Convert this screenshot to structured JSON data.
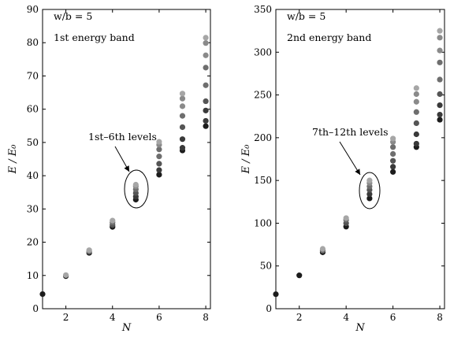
{
  "chart_data": [
    {
      "type": "scatter",
      "title": "",
      "xlabel": "N",
      "ylabel": "E / E₀",
      "xlim": [
        1,
        8.2
      ],
      "ylim": [
        0,
        90
      ],
      "xticks": [
        2,
        4,
        6,
        8
      ],
      "yticks": [
        0,
        10,
        20,
        30,
        40,
        50,
        60,
        70,
        80,
        90
      ],
      "annotations": [
        "w/b = 5",
        "1st energy band",
        "1st–6th levels"
      ],
      "points": [
        {
          "x": 1,
          "y": [
            4.4
          ]
        },
        {
          "x": 2,
          "y": [
            9.8,
            10.1
          ]
        },
        {
          "x": 3,
          "y": [
            16.8,
            17.2,
            17.6
          ]
        },
        {
          "x": 4,
          "y": [
            24.6,
            25.2,
            25.9,
            26.5
          ]
        },
        {
          "x": 5,
          "y": [
            32.8,
            33.7,
            34.8,
            35.9,
            36.8,
            37.3
          ]
        },
        {
          "x": 6,
          "y": [
            40.3,
            41.7,
            43.6,
            45.8,
            47.9,
            49.3,
            50.2
          ]
        },
        {
          "x": 7,
          "y": [
            47.6,
            48.4,
            51.0,
            54.6,
            58.0,
            60.9,
            63.2,
            64.7
          ]
        },
        {
          "x": 8,
          "y": [
            54.9,
            56.5,
            59.6,
            62.4,
            67.2,
            72.5,
            76.2,
            79.9,
            81.5
          ]
        }
      ],
      "circled": {
        "x": 5,
        "label": "1st–6th levels"
      }
    },
    {
      "type": "scatter",
      "title": "",
      "xlabel": "N",
      "ylabel": "E / E₀",
      "xlim": [
        1,
        8.2
      ],
      "ylim": [
        0,
        350
      ],
      "xticks": [
        2,
        4,
        6,
        8
      ],
      "yticks": [
        0,
        50,
        100,
        150,
        200,
        250,
        300,
        350
      ],
      "annotations": [
        "w/b = 5",
        "2nd energy band",
        "7th–12th levels"
      ],
      "points": [
        {
          "x": 1,
          "y": [
            17
          ]
        },
        {
          "x": 2,
          "y": [
            39
          ]
        },
        {
          "x": 3,
          "y": [
            66,
            68,
            70
          ]
        },
        {
          "x": 4,
          "y": [
            96,
            100,
            104,
            106
          ]
        },
        {
          "x": 5,
          "y": [
            129,
            134,
            139,
            143,
            147,
            150
          ]
        },
        {
          "x": 6,
          "y": [
            160,
            166,
            173,
            181,
            189,
            195,
            199
          ]
        },
        {
          "x": 7,
          "y": [
            189,
            193,
            204,
            217,
            230,
            242,
            251,
            258
          ]
        },
        {
          "x": 8,
          "y": [
            221,
            227,
            238,
            251,
            268,
            288,
            302,
            317,
            325
          ]
        }
      ],
      "circled": {
        "x": 5,
        "label": "7th–12th levels"
      }
    }
  ],
  "panels": [
    {
      "id": "band1",
      "wb_prefix": "w/b = 5",
      "band_label": "1st energy band",
      "circle_label": "1st–6th levels"
    },
    {
      "id": "band2",
      "wb_prefix": "w/b = 5",
      "band_label": "2nd energy band",
      "circle_label": "7th–12th levels"
    }
  ],
  "colors": {
    "axis": "#000000",
    "point_shades": [
      "#1c1c1c",
      "#3a3a3a",
      "#555555",
      "#6e6e6e",
      "#8a8a8a",
      "#a6a6a6"
    ]
  }
}
